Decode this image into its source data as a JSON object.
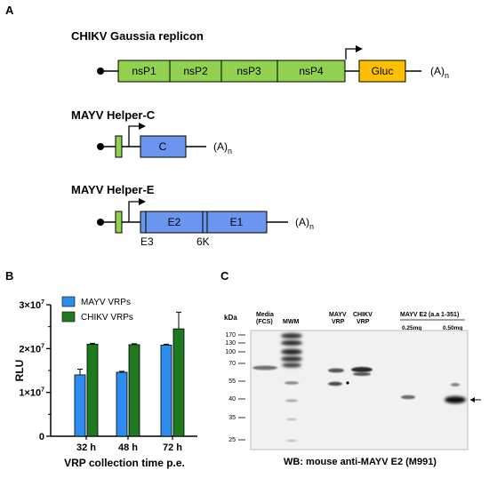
{
  "panel_a": {
    "letter": "A",
    "constructs": [
      {
        "title": "CHIKV Gaussia replicon",
        "segments": [
          "nsP1",
          "nsP2",
          "nsP3",
          "nsP4",
          "Gluc"
        ],
        "polya": "(A)",
        "polya_sub": "n"
      },
      {
        "title": "MAYV Helper-C",
        "segments": [
          "C"
        ],
        "polya": "(A)",
        "polya_sub": "n"
      },
      {
        "title": "MAYV Helper-E",
        "segments": [
          "E2",
          "E1"
        ],
        "sub_labels": [
          "E3",
          "6K"
        ],
        "polya": "(A)",
        "polya_sub": "n"
      }
    ],
    "colors": {
      "nonstructural": "#92d050",
      "gluc": "#ffc000",
      "structural": "#6a96f0"
    }
  },
  "panel_b": {
    "letter": "B",
    "chart_data": {
      "type": "bar",
      "ylabel": "RLU",
      "xlabel": "VRP collection time p.e.",
      "categories": [
        "32 h",
        "48 h",
        "72 h"
      ],
      "y_tick_labels": [
        "0",
        "1×10",
        "2×10",
        "3×10"
      ],
      "y_tick_exponent": "7",
      "ylim": [
        0,
        30000000
      ],
      "legend_position": "top-left",
      "series": [
        {
          "name": "MAYV VRPs",
          "color": "#2e8cf0",
          "values": [
            14000000,
            14600000,
            20800000
          ],
          "errors": [
            1300000,
            200000,
            200000
          ]
        },
        {
          "name": "CHIKV VRPs",
          "color": "#1f7a1f",
          "values": [
            21000000,
            20900000,
            24500000
          ],
          "errors": [
            200000,
            200000,
            3800000
          ]
        }
      ]
    }
  },
  "panel_c": {
    "letter": "C",
    "kda_label": "kDa",
    "markers": [
      "170",
      "130",
      "100",
      "70",
      "55",
      "40",
      "35",
      "25"
    ],
    "lane_labels": {
      "media": [
        "Media",
        "(FCS)"
      ],
      "mwm": "MWM",
      "mayv": [
        "MAYV",
        "VRP"
      ],
      "chikv": [
        "CHIKV",
        "VRP"
      ],
      "e2_header": "MAYV E2 (a.a 1-351)",
      "dose1": "0.25mg",
      "dose2": "0.50mg"
    },
    "caption": "WB: mouse anti-MAYV E2 (M991)"
  }
}
